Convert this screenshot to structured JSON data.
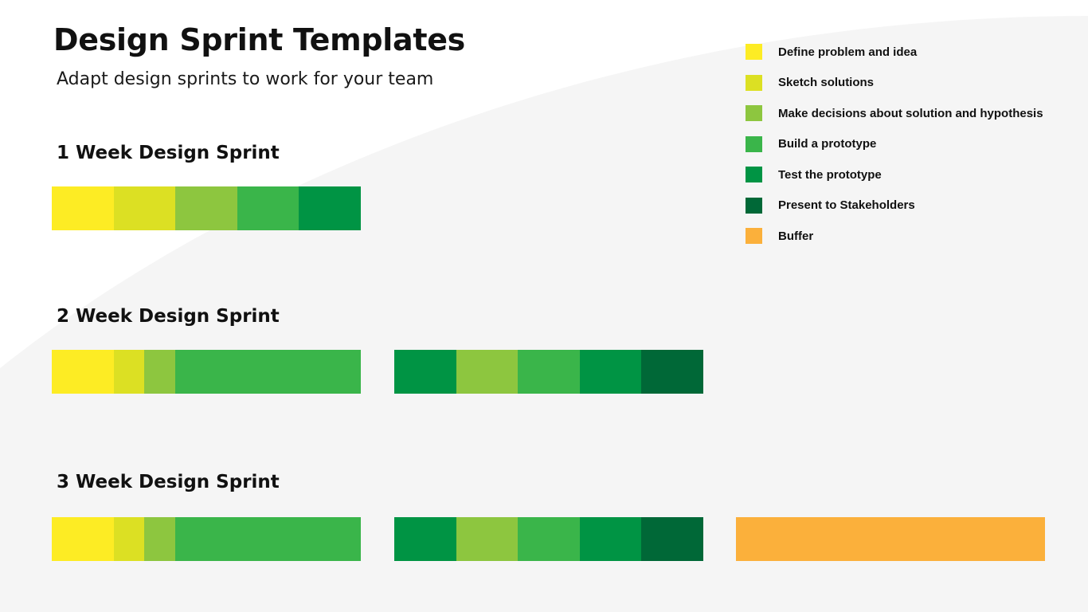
{
  "title": "Design Sprint Templates",
  "subtitle": "Adapt design sprints to work for your team",
  "colors": {
    "define": "#FDEC24",
    "sketch": "#DCE023",
    "decide": "#8DC63F",
    "build": "#3AB54A",
    "test": "#009444",
    "present": "#006837",
    "buffer": "#FBB03B",
    "background_curve": "#F5F5F5"
  },
  "legend": [
    {
      "key": "define",
      "label": "Define problem and idea"
    },
    {
      "key": "sketch",
      "label": "Sketch solutions"
    },
    {
      "key": "decide",
      "label": "Make decisions about solution and hypothesis"
    },
    {
      "key": "build",
      "label": "Build a prototype"
    },
    {
      "key": "test",
      "label": "Test the prototype"
    },
    {
      "key": "present",
      "label": "Present to Stakeholders"
    },
    {
      "key": "buffer",
      "label": "Buffer"
    }
  ],
  "sprints": [
    {
      "heading": "1 Week Design Sprint",
      "weeks": [
        [
          {
            "phase": "define",
            "days": 1
          },
          {
            "phase": "sketch",
            "days": 1
          },
          {
            "phase": "decide",
            "days": 1
          },
          {
            "phase": "build",
            "days": 1
          },
          {
            "phase": "test",
            "days": 1
          }
        ]
      ]
    },
    {
      "heading": "2 Week Design Sprint",
      "weeks": [
        [
          {
            "phase": "define",
            "days": 1
          },
          {
            "phase": "sketch",
            "days": 0.5
          },
          {
            "phase": "decide",
            "days": 0.5
          },
          {
            "phase": "build",
            "days": 3
          }
        ],
        [
          {
            "phase": "test",
            "days": 1
          },
          {
            "phase": "decide",
            "days": 1
          },
          {
            "phase": "build",
            "days": 1
          },
          {
            "phase": "test",
            "days": 1
          },
          {
            "phase": "present",
            "days": 1
          }
        ]
      ]
    },
    {
      "heading": "3 Week Design Sprint",
      "weeks": [
        [
          {
            "phase": "define",
            "days": 1
          },
          {
            "phase": "sketch",
            "days": 0.5
          },
          {
            "phase": "decide",
            "days": 0.5
          },
          {
            "phase": "build",
            "days": 3
          }
        ],
        [
          {
            "phase": "test",
            "days": 1
          },
          {
            "phase": "decide",
            "days": 1
          },
          {
            "phase": "build",
            "days": 1
          },
          {
            "phase": "test",
            "days": 1
          },
          {
            "phase": "present",
            "days": 1
          }
        ],
        [
          {
            "phase": "buffer",
            "days": 5
          }
        ]
      ]
    }
  ]
}
